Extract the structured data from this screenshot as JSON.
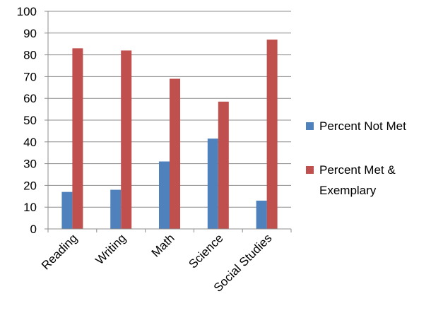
{
  "chart_data": {
    "type": "bar",
    "categories": [
      "Reading",
      "Writing",
      "Math",
      "Science",
      "Social Studies"
    ],
    "series": [
      {
        "name": "Percent Not Met",
        "values": [
          17,
          18,
          31,
          41.5,
          13
        ],
        "color": "#4F81BD"
      },
      {
        "name": "Percent Met & Exemplary",
        "values": [
          83,
          82,
          69,
          58.5,
          87
        ],
        "color": "#C0504D"
      }
    ],
    "ylim": [
      0,
      100
    ],
    "yticks": [
      0,
      10,
      20,
      30,
      40,
      50,
      60,
      70,
      80,
      90,
      100
    ],
    "grid": true,
    "legend_position": "right",
    "legend_lines": [
      [
        "Percent Not Met"
      ],
      [
        "Percent Met &",
        "Exemplary"
      ]
    ]
  }
}
